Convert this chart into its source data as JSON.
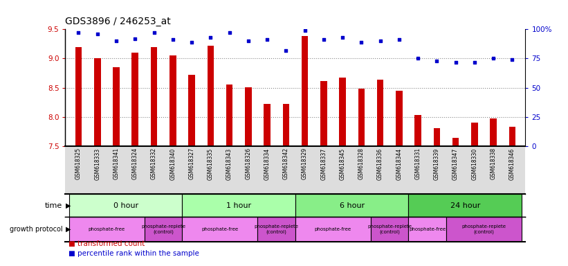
{
  "title": "GDS3896 / 246253_at",
  "samples": [
    "GSM618325",
    "GSM618333",
    "GSM618341",
    "GSM618324",
    "GSM618332",
    "GSM618340",
    "GSM618327",
    "GSM618335",
    "GSM618343",
    "GSM618326",
    "GSM618334",
    "GSM618342",
    "GSM618329",
    "GSM618337",
    "GSM618345",
    "GSM618328",
    "GSM618336",
    "GSM618344",
    "GSM618331",
    "GSM618339",
    "GSM618347",
    "GSM618330",
    "GSM618338",
    "GSM618346"
  ],
  "transformed_count": [
    9.2,
    9.0,
    8.85,
    9.1,
    9.2,
    9.05,
    8.72,
    9.22,
    8.55,
    8.51,
    8.23,
    8.23,
    9.38,
    8.61,
    8.68,
    8.48,
    8.64,
    8.45,
    8.03,
    7.81,
    7.65,
    7.9,
    7.98,
    7.83
  ],
  "percentile_rank": [
    97,
    96,
    90,
    92,
    97,
    91,
    89,
    93,
    97,
    90,
    91,
    82,
    99,
    91,
    93,
    89,
    90,
    91,
    75,
    73,
    72,
    72,
    75,
    74
  ],
  "time_groups": [
    {
      "label": "0 hour",
      "start": 0,
      "end": 6,
      "color": "#ccffcc"
    },
    {
      "label": "1 hour",
      "start": 6,
      "end": 12,
      "color": "#aaffaa"
    },
    {
      "label": "6 hour",
      "start": 12,
      "end": 18,
      "color": "#88ee88"
    },
    {
      "label": "24 hour",
      "start": 18,
      "end": 24,
      "color": "#55cc55"
    }
  ],
  "protocol_groups": [
    {
      "label": "phosphate-free",
      "start": 0,
      "end": 4,
      "color": "#ee88ee"
    },
    {
      "label": "phosphate-replete\n(control)",
      "start": 4,
      "end": 6,
      "color": "#cc55cc"
    },
    {
      "label": "phosphate-free",
      "start": 6,
      "end": 10,
      "color": "#ee88ee"
    },
    {
      "label": "phosphate-replete\n(control)",
      "start": 10,
      "end": 12,
      "color": "#cc55cc"
    },
    {
      "label": "phosphate-free",
      "start": 12,
      "end": 16,
      "color": "#ee88ee"
    },
    {
      "label": "phosphate-replete\n(control)",
      "start": 16,
      "end": 18,
      "color": "#cc55cc"
    },
    {
      "label": "phosphate-free",
      "start": 18,
      "end": 20,
      "color": "#ee88ee"
    },
    {
      "label": "phosphate-replete\n(control)",
      "start": 20,
      "end": 24,
      "color": "#cc55cc"
    }
  ],
  "ylim": [
    7.5,
    9.5
  ],
  "yticks": [
    7.5,
    8.0,
    8.5,
    9.0,
    9.5
  ],
  "y2lim": [
    0,
    100
  ],
  "y2ticks": [
    0,
    25,
    50,
    75,
    100
  ],
  "y2ticklabels": [
    "0",
    "25",
    "50",
    "75",
    "100%"
  ],
  "bar_color": "#cc0000",
  "dot_color": "#0000cc",
  "bar_bottom": 7.5,
  "background_color": "#ffffff",
  "grid_color": "#888888",
  "xticklabel_bg": "#dddddd"
}
